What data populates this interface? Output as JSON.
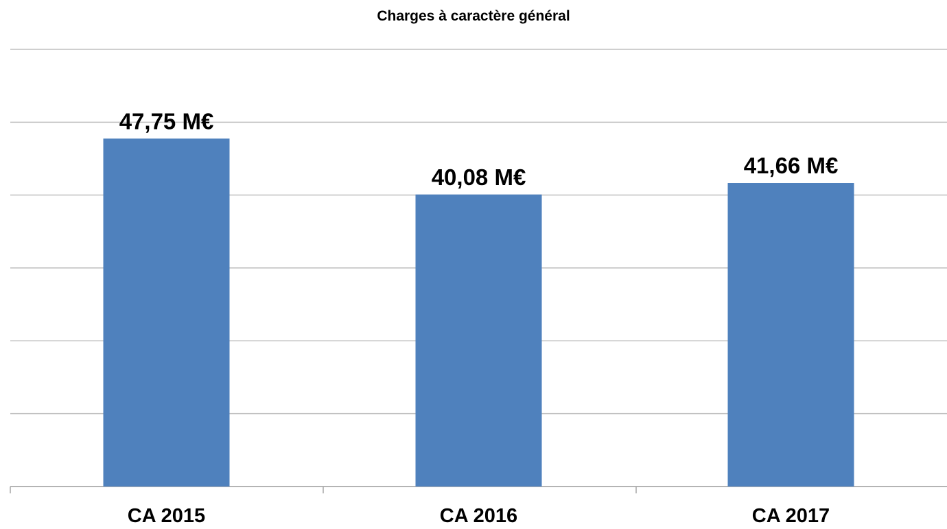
{
  "chart_data": {
    "type": "bar",
    "title": "Charges à caractère général",
    "categories": [
      "CA 2015",
      "CA 2016",
      "CA 2017"
    ],
    "values": [
      47.75,
      40.08,
      41.66
    ],
    "value_labels": [
      "47,75 M€",
      "40,08 M€",
      "41,66 M€"
    ],
    "color": "#4f81bd",
    "ylim": [
      0,
      60
    ],
    "yticks": [
      0,
      10,
      20,
      30,
      40,
      50,
      60
    ],
    "grid": true
  }
}
